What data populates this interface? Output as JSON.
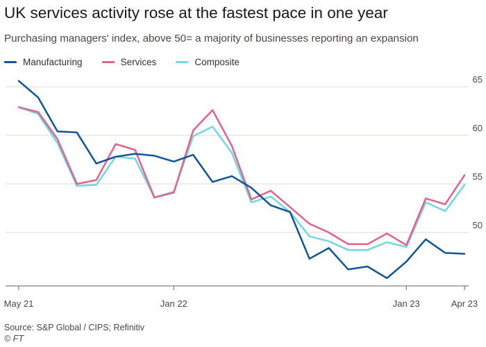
{
  "chart_data": {
    "type": "line",
    "title": "UK services activity rose at the fastest pace in one year",
    "subtitle": "Purchasing managers' index, above 50= a majority of businesses reporting an expansion",
    "xlabel": "",
    "ylabel": "",
    "ylim": [
      44.5,
      66.5
    ],
    "yticks": [
      50,
      55,
      60,
      65
    ],
    "xticks": [
      {
        "index": 0,
        "label": "May 21"
      },
      {
        "index": 8,
        "label": "Jan 22"
      },
      {
        "index": 20,
        "label": "Jan 23"
      },
      {
        "index": 23,
        "label": "Apr 23"
      }
    ],
    "x": [
      "May 21",
      "Jun 21",
      "Jul 21",
      "Aug 21",
      "Sep 21",
      "Oct 21",
      "Nov 21",
      "Dec 21",
      "Jan 22",
      "Feb 22",
      "Mar 22",
      "Apr 22",
      "May 22",
      "Jun 22",
      "Jul 22",
      "Aug 22",
      "Sep 22",
      "Oct 22",
      "Nov 22",
      "Dec 22",
      "Jan 23",
      "Feb 23",
      "Mar 23",
      "Apr 23"
    ],
    "series": [
      {
        "name": "Manufacturing",
        "color": "#0f5499",
        "values": [
          65.6,
          63.9,
          60.4,
          60.3,
          57.1,
          57.8,
          58.1,
          57.9,
          57.3,
          58.0,
          55.2,
          55.8,
          54.6,
          52.8,
          52.1,
          47.3,
          48.4,
          46.2,
          46.5,
          45.3,
          47.0,
          49.3,
          47.9,
          47.8
        ]
      },
      {
        "name": "Services",
        "color": "#e3628b",
        "values": [
          62.9,
          62.4,
          59.6,
          55.0,
          55.4,
          59.1,
          58.5,
          53.6,
          54.1,
          60.5,
          62.6,
          58.9,
          53.4,
          54.3,
          52.6,
          50.9,
          50.0,
          48.8,
          48.8,
          49.9,
          48.7,
          53.5,
          52.9,
          55.9
        ]
      },
      {
        "name": "Composite",
        "color": "#6fd9e0",
        "values": [
          62.9,
          62.2,
          59.2,
          54.8,
          54.9,
          57.8,
          57.6,
          53.6,
          54.2,
          59.9,
          60.9,
          58.2,
          53.1,
          53.7,
          52.1,
          49.6,
          49.1,
          48.2,
          48.2,
          49.0,
          48.5,
          53.1,
          52.2,
          54.9
        ]
      }
    ]
  },
  "footer": {
    "source": "Source: S&P Global / CIPS; Refinitiv",
    "credit": "© FT"
  }
}
